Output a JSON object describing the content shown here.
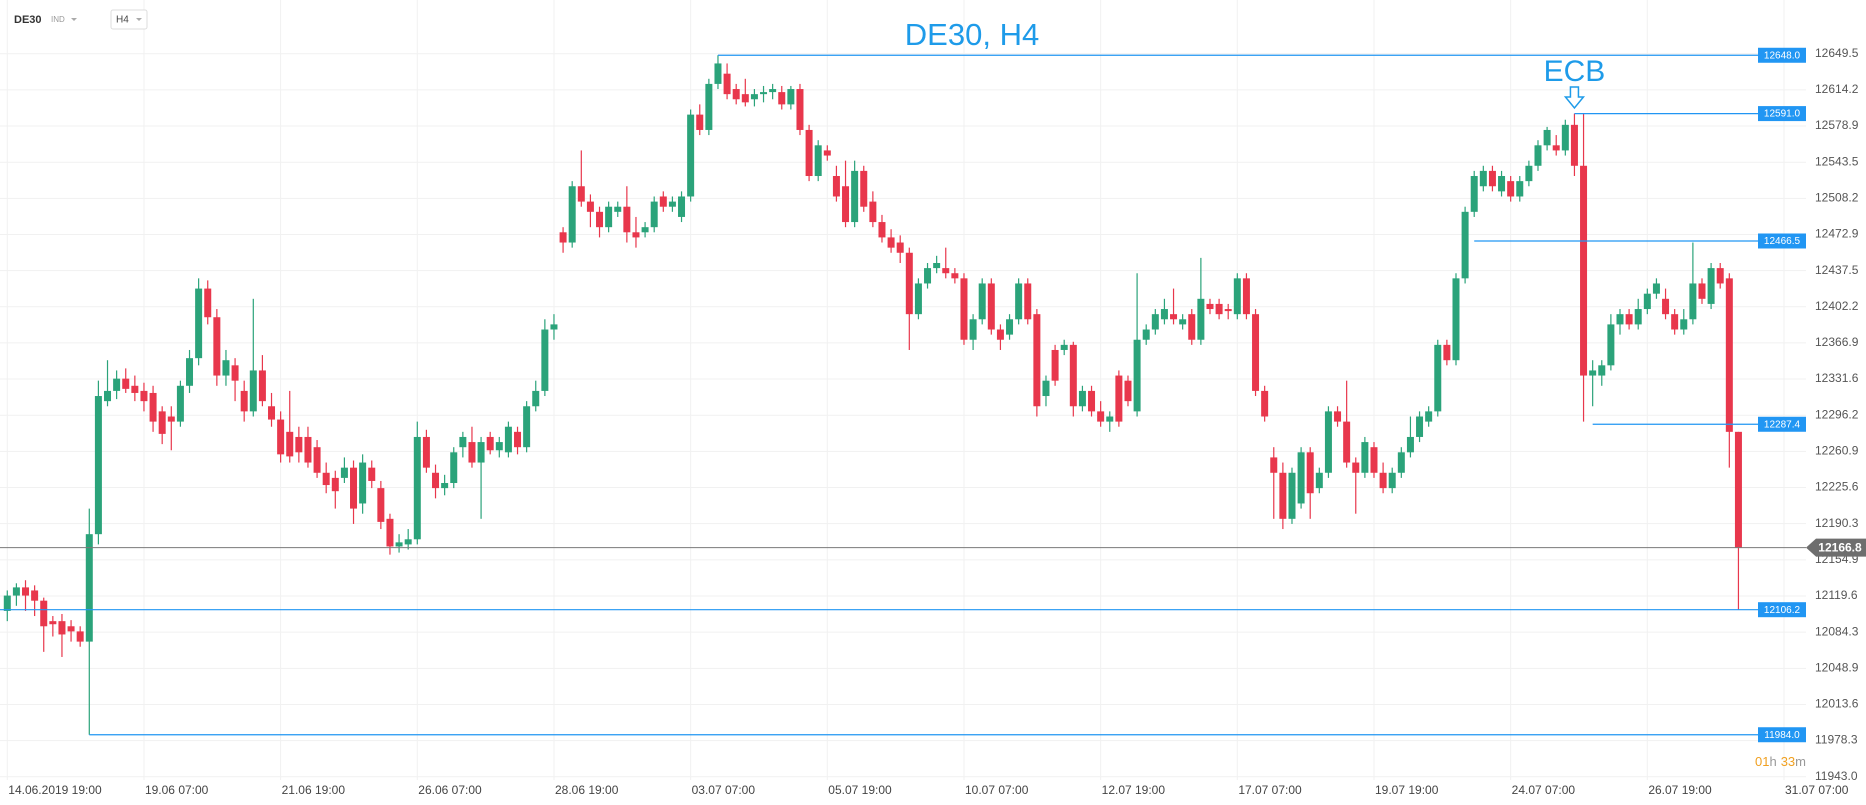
{
  "header": {
    "symbol": "DE30",
    "market": "IND",
    "timeframe": "H4"
  },
  "chart_data": {
    "type": "candlestick",
    "title": "DE30, H4",
    "annotation": "ECB",
    "annotation_x": 172,
    "up_color": "#2ba37a",
    "down_color": "#e8374c",
    "level_color": "#2196f3",
    "last_color": "#7a7a7a",
    "xlim": [
      -0.8,
      204
    ],
    "ylim": [
      11930,
      12702
    ],
    "grid": true,
    "xticks": [
      {
        "value": 0,
        "label": "14.06.2019 19:00"
      },
      {
        "value": 15,
        "label": "19.06 07:00"
      },
      {
        "value": 30,
        "label": "21.06 19:00"
      },
      {
        "value": 45,
        "label": "26.06 07:00"
      },
      {
        "value": 60,
        "label": "28.06 19:00"
      },
      {
        "value": 75,
        "label": "03.07 07:00"
      },
      {
        "value": 90,
        "label": "05.07 19:00"
      },
      {
        "value": 105,
        "label": "10.07 07:00"
      },
      {
        "value": 120,
        "label": "12.07 19:00"
      },
      {
        "value": 135,
        "label": "17.07 07:00"
      },
      {
        "value": 150,
        "label": "19.07 19:00"
      },
      {
        "value": 165,
        "label": "24.07 07:00"
      },
      {
        "value": 180,
        "label": "26.07 19:00"
      },
      {
        "value": 195,
        "label": "31.07 07:00"
      }
    ],
    "yticks": [
      12649.5,
      12614.2,
      12578.9,
      12543.5,
      12508.2,
      12472.9,
      12437.5,
      12402.2,
      12366.9,
      12331.6,
      12296.2,
      12260.9,
      12225.6,
      12190.3,
      12154.9,
      12119.6,
      12084.3,
      12048.9,
      12013.6,
      11978.3,
      {
        "value": 11943,
        "label": "11943.0"
      }
    ],
    "levels": [
      {
        "value": {
          "value": 12648,
          "label": "12648.0"
        },
        "from": 78
      },
      {
        "value": {
          "value": 12591,
          "label": "12591.0"
        },
        "from": 172
      },
      {
        "value": 12466.5,
        "from": 161
      },
      {
        "value": 12287.4,
        "from": 174
      },
      {
        "value": 12106.2
      },
      {
        "value": {
          "value": 11984,
          "label": "11984.0"
        },
        "from": 9
      }
    ],
    "last_price": 12166.8,
    "countdown": [
      "01",
      "h",
      "33",
      "m"
    ],
    "ohlc": [
      [
        12105,
        12125,
        12095,
        12120
      ],
      [
        12120,
        12132,
        12110,
        12128
      ],
      [
        12128,
        12135,
        12105,
        12120
      ],
      [
        12125,
        12130,
        12100,
        12115
      ],
      [
        12115,
        12118,
        12065,
        12090
      ],
      [
        12095,
        12100,
        12080,
        12092
      ],
      [
        12095,
        12102,
        12060,
        12082
      ],
      [
        12090,
        12096,
        12075,
        12085
      ],
      [
        12085,
        12090,
        12070,
        12075
      ],
      [
        12075,
        12205,
        11984,
        12180
      ],
      [
        12180,
        12330,
        12170,
        12315
      ],
      [
        12310,
        12350,
        12305,
        12320
      ],
      [
        12320,
        12340,
        12312,
        12332
      ],
      [
        12332,
        12342,
        12318,
        12322
      ],
      [
        12325,
        12335,
        12310,
        12318
      ],
      [
        12320,
        12328,
        12300,
        12310
      ],
      [
        12318,
        12325,
        12280,
        12290
      ],
      [
        12300,
        12305,
        12268,
        12278
      ],
      [
        12295,
        12305,
        12262,
        12290
      ],
      [
        12290,
        12330,
        12285,
        12325
      ],
      [
        12325,
        12360,
        12318,
        12352
      ],
      [
        12352,
        12430,
        12345,
        12420
      ],
      [
        12420,
        12428,
        12385,
        12392
      ],
      [
        12392,
        12400,
        12325,
        12335
      ],
      [
        12335,
        12360,
        12325,
        12350
      ],
      [
        12345,
        12352,
        12310,
        12330
      ],
      [
        12320,
        12330,
        12290,
        12300
      ],
      [
        12300,
        12410,
        12295,
        12340
      ],
      [
        12340,
        12355,
        12305,
        12310
      ],
      [
        12305,
        12318,
        12285,
        12292
      ],
      [
        12292,
        12300,
        12250,
        12258
      ],
      [
        12280,
        12320,
        12250,
        12256
      ],
      [
        12275,
        12285,
        12250,
        12260
      ],
      [
        12275,
        12285,
        12245,
        12250
      ],
      [
        12265,
        12272,
        12235,
        12240
      ],
      [
        12240,
        12250,
        12220,
        12228
      ],
      [
        12235,
        12242,
        12205,
        12222
      ],
      [
        12235,
        12255,
        12230,
        12245
      ],
      [
        12245,
        12252,
        12190,
        12205
      ],
      [
        12210,
        12258,
        12200,
        12250
      ],
      [
        12245,
        12252,
        12225,
        12232
      ],
      [
        12225,
        12232,
        12185,
        12192
      ],
      [
        12195,
        12200,
        12160,
        12168
      ],
      [
        12168,
        12180,
        12162,
        12172
      ],
      [
        12170,
        12185,
        12165,
        12175
      ],
      [
        12175,
        12290,
        12170,
        12275
      ],
      [
        12275,
        12282,
        12240,
        12245
      ],
      [
        12240,
        12248,
        12215,
        12225
      ],
      [
        12225,
        12238,
        12218,
        12230
      ],
      [
        12230,
        12265,
        12225,
        12260
      ],
      [
        12265,
        12280,
        12255,
        12275
      ],
      [
        12270,
        12285,
        12245,
        12250
      ],
      [
        12250,
        12275,
        12195,
        12270
      ],
      [
        12275,
        12280,
        12258,
        12262
      ],
      [
        12262,
        12275,
        12255,
        12270
      ],
      [
        12260,
        12290,
        12255,
        12285
      ],
      [
        12280,
        12285,
        12258,
        12265
      ],
      [
        12265,
        12310,
        12260,
        12305
      ],
      [
        12305,
        12330,
        12300,
        12320
      ],
      [
        12320,
        12390,
        12315,
        12380
      ],
      [
        12380,
        12395,
        12370,
        12385
      ],
      [
        12475,
        12480,
        12455,
        12465
      ],
      [
        12465,
        12525,
        12460,
        12520
      ],
      [
        12520,
        12555,
        12500,
        12505
      ],
      [
        12505,
        12512,
        12480,
        12495
      ],
      [
        12495,
        12500,
        12470,
        12480
      ],
      [
        12480,
        12505,
        12475,
        12500
      ],
      [
        12495,
        12505,
        12490,
        12500
      ],
      [
        12500,
        12520,
        12465,
        12475
      ],
      [
        12475,
        12490,
        12460,
        12470
      ],
      [
        12475,
        12485,
        12470,
        12480
      ],
      [
        12480,
        12510,
        12475,
        12505
      ],
      [
        12510,
        12515,
        12495,
        12500
      ],
      [
        12500,
        12510,
        12495,
        12505
      ],
      [
        12490,
        12515,
        12485,
        12510
      ],
      [
        12510,
        12595,
        12505,
        12590
      ],
      [
        12590,
        12600,
        12570,
        12575
      ],
      [
        12575,
        12625,
        12570,
        12620
      ],
      [
        12620,
        12648,
        12615,
        12640
      ],
      [
        12630,
        12640,
        12605,
        12610
      ],
      [
        12615,
        12620,
        12600,
        12605
      ],
      [
        12610,
        12625,
        12598,
        12602
      ],
      [
        12605,
        12615,
        12598,
        12610
      ],
      [
        12610,
        12618,
        12602,
        12612
      ],
      [
        12612,
        12620,
        12605,
        12615
      ],
      [
        12612,
        12618,
        12595,
        12600
      ],
      [
        12600,
        12618,
        12595,
        12615
      ],
      [
        12615,
        12620,
        12570,
        12575
      ],
      [
        12575,
        12580,
        12525,
        12530
      ],
      [
        12530,
        12565,
        12525,
        12560
      ],
      [
        12555,
        12560,
        12545,
        12550
      ],
      [
        12530,
        12540,
        12505,
        12510
      ],
      [
        12520,
        12545,
        12480,
        12485
      ],
      [
        12485,
        12545,
        12480,
        12535
      ],
      [
        12535,
        12540,
        12495,
        12500
      ],
      [
        12505,
        12515,
        12480,
        12485
      ],
      [
        12485,
        12492,
        12465,
        12470
      ],
      [
        12470,
        12478,
        12455,
        12460
      ],
      [
        12465,
        12472,
        12445,
        12455
      ],
      [
        12455,
        12460,
        12360,
        12395
      ],
      [
        12395,
        12430,
        12390,
        12425
      ],
      [
        12425,
        12445,
        12420,
        12440
      ],
      [
        12440,
        12452,
        12435,
        12445
      ],
      [
        12440,
        12460,
        12430,
        12435
      ],
      [
        12435,
        12440,
        12425,
        12430
      ],
      [
        12430,
        12435,
        12365,
        12370
      ],
      [
        12370,
        12395,
        12360,
        12390
      ],
      [
        12390,
        12430,
        12385,
        12425
      ],
      [
        12425,
        12430,
        12375,
        12380
      ],
      [
        12380,
        12385,
        12360,
        12370
      ],
      [
        12375,
        12395,
        12370,
        12390
      ],
      [
        12390,
        12430,
        12385,
        12425
      ],
      [
        12425,
        12430,
        12385,
        12390
      ],
      [
        12395,
        12400,
        12295,
        12305
      ],
      [
        12315,
        12335,
        12305,
        12330
      ],
      [
        12360,
        12365,
        12325,
        12330
      ],
      [
        12360,
        12370,
        12355,
        12365
      ],
      [
        12365,
        12368,
        12295,
        12305
      ],
      [
        12305,
        12325,
        12300,
        12320
      ],
      [
        12320,
        12325,
        12295,
        12300
      ],
      [
        12300,
        12310,
        12285,
        12290
      ],
      [
        12290,
        12300,
        12280,
        12295
      ],
      [
        12335,
        12340,
        12285,
        12290
      ],
      [
        12330,
        12335,
        12305,
        12310
      ],
      [
        12300,
        12435,
        12295,
        12370
      ],
      [
        12370,
        12385,
        12365,
        12380
      ],
      [
        12380,
        12400,
        12375,
        12395
      ],
      [
        12390,
        12410,
        12385,
        12400
      ],
      [
        12395,
        12420,
        12385,
        12390
      ],
      [
        12385,
        12395,
        12380,
        12390
      ],
      [
        12395,
        12400,
        12365,
        12370
      ],
      [
        12370,
        12450,
        12365,
        12410
      ],
      [
        12405,
        12410,
        12395,
        12400
      ],
      [
        12405,
        12410,
        12390,
        12395
      ],
      [
        12400,
        12405,
        12390,
        12398
      ],
      [
        12395,
        12435,
        12390,
        12430
      ],
      [
        12430,
        12435,
        12390,
        12395
      ],
      [
        12395,
        12400,
        12315,
        12320
      ],
      [
        12320,
        12325,
        12290,
        12295
      ],
      [
        12255,
        12265,
        12195,
        12240
      ],
      [
        12240,
        12250,
        12185,
        12195
      ],
      [
        12195,
        12245,
        12190,
        12240
      ],
      [
        12210,
        12265,
        12205,
        12260
      ],
      [
        12260,
        12265,
        12195,
        12220
      ],
      [
        12225,
        12245,
        12220,
        12240
      ],
      [
        12240,
        12305,
        12235,
        12300
      ],
      [
        12300,
        12305,
        12285,
        12290
      ],
      [
        12290,
        12330,
        12245,
        12250
      ],
      [
        12250,
        12255,
        12200,
        12240
      ],
      [
        12240,
        12275,
        12235,
        12270
      ],
      [
        12265,
        12270,
        12235,
        12240
      ],
      [
        12240,
        12250,
        12220,
        12225
      ],
      [
        12225,
        12245,
        12220,
        12240
      ],
      [
        12240,
        12265,
        12235,
        12260
      ],
      [
        12260,
        12295,
        12255,
        12275
      ],
      [
        12275,
        12300,
        12270,
        12295
      ],
      [
        12290,
        12305,
        12285,
        12300
      ],
      [
        12300,
        12370,
        12295,
        12365
      ],
      [
        12365,
        12370,
        12345,
        12350
      ],
      [
        12350,
        12435,
        12345,
        12430
      ],
      [
        12430,
        12500,
        12425,
        12495
      ],
      [
        12495,
        12535,
        12490,
        12530
      ],
      [
        12520,
        12540,
        12515,
        12535
      ],
      [
        12535,
        12540,
        12515,
        12520
      ],
      [
        12515,
        12535,
        12510,
        12530
      ],
      [
        12525,
        12530,
        12505,
        12510
      ],
      [
        12510,
        12530,
        12505,
        12525
      ],
      [
        12525,
        12545,
        12520,
        12540
      ],
      [
        12540,
        12565,
        12535,
        12560
      ],
      [
        12560,
        12578,
        12555,
        12575
      ],
      [
        12560,
        12570,
        12550,
        12555
      ],
      [
        12555,
        12585,
        12550,
        12580
      ],
      [
        12580,
        12591,
        12530,
        12540
      ],
      [
        12540,
        12591,
        12290,
        12335
      ],
      [
        12335,
        12350,
        12305,
        12340
      ],
      [
        12335,
        12350,
        12325,
        12345
      ],
      [
        12345,
        12395,
        12340,
        12385
      ],
      [
        12385,
        12400,
        12375,
        12395
      ],
      [
        12395,
        12400,
        12380,
        12385
      ],
      [
        12385,
        12410,
        12380,
        12400
      ],
      [
        12400,
        12420,
        12395,
        12415
      ],
      [
        12415,
        12430,
        12410,
        12425
      ],
      [
        12410,
        12420,
        12390,
        12395
      ],
      [
        12395,
        12400,
        12375,
        12380
      ],
      [
        12380,
        12400,
        12375,
        12390
      ],
      [
        12390,
        12465,
        12385,
        12425
      ],
      [
        12425,
        12430,
        12405,
        12410
      ],
      [
        12405,
        12445,
        12400,
        12440
      ],
      [
        12440,
        12445,
        12420,
        12425
      ],
      [
        12430,
        12435,
        12245,
        12280
      ],
      [
        12280,
        12280,
        12106.2,
        12166.8
      ]
    ]
  }
}
